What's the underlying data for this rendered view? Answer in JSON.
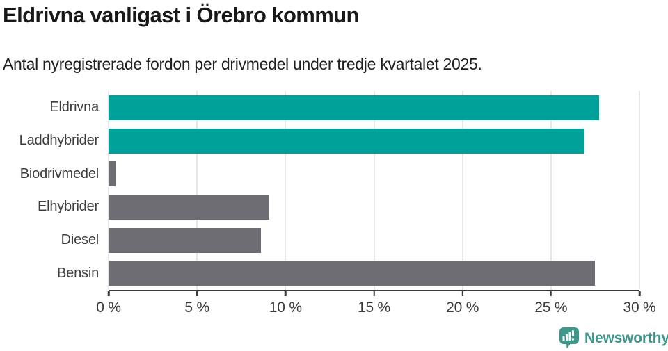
{
  "header": {
    "title": "Eldrivna vanligast i Örebro kommun",
    "subtitle": "Antal nyregistrerade fordon per drivmedel under tredje kvartalet 2025."
  },
  "chart_data": {
    "type": "bar",
    "orientation": "horizontal",
    "title": "Eldrivna vanligast i Örebro kommun",
    "subtitle": "Antal nyregistrerade fordon per drivmedel under tredje kvartalet 2025.",
    "categories": [
      "Eldrivna",
      "Laddhybrider",
      "Biodrivmedel",
      "Elhybrider",
      "Diesel",
      "Bensin"
    ],
    "values": [
      27.7,
      26.9,
      0.4,
      9.1,
      8.6,
      27.5
    ],
    "unit": "%",
    "xlim": [
      0,
      30
    ],
    "x_ticks": [
      0,
      5,
      10,
      15,
      20,
      25,
      30
    ],
    "x_tick_labels": [
      "0 %",
      "5 %",
      "10 %",
      "15 %",
      "20 %",
      "25 %",
      "30 %"
    ],
    "grid": true,
    "legend": false,
    "bar_colors": [
      "#00A199",
      "#00A199",
      "#6E6D73",
      "#6E6D73",
      "#6E6D73",
      "#6E6D73"
    ],
    "highlight_color": "#00A199",
    "default_color": "#6E6D73",
    "highlighted_categories": [
      "Eldrivna",
      "Laddhybrider"
    ]
  },
  "footer": {
    "brand": "Newsworthy",
    "brand_color": "#3F968B",
    "logo_icon": "bar-chart-speech-bubble-icon"
  }
}
